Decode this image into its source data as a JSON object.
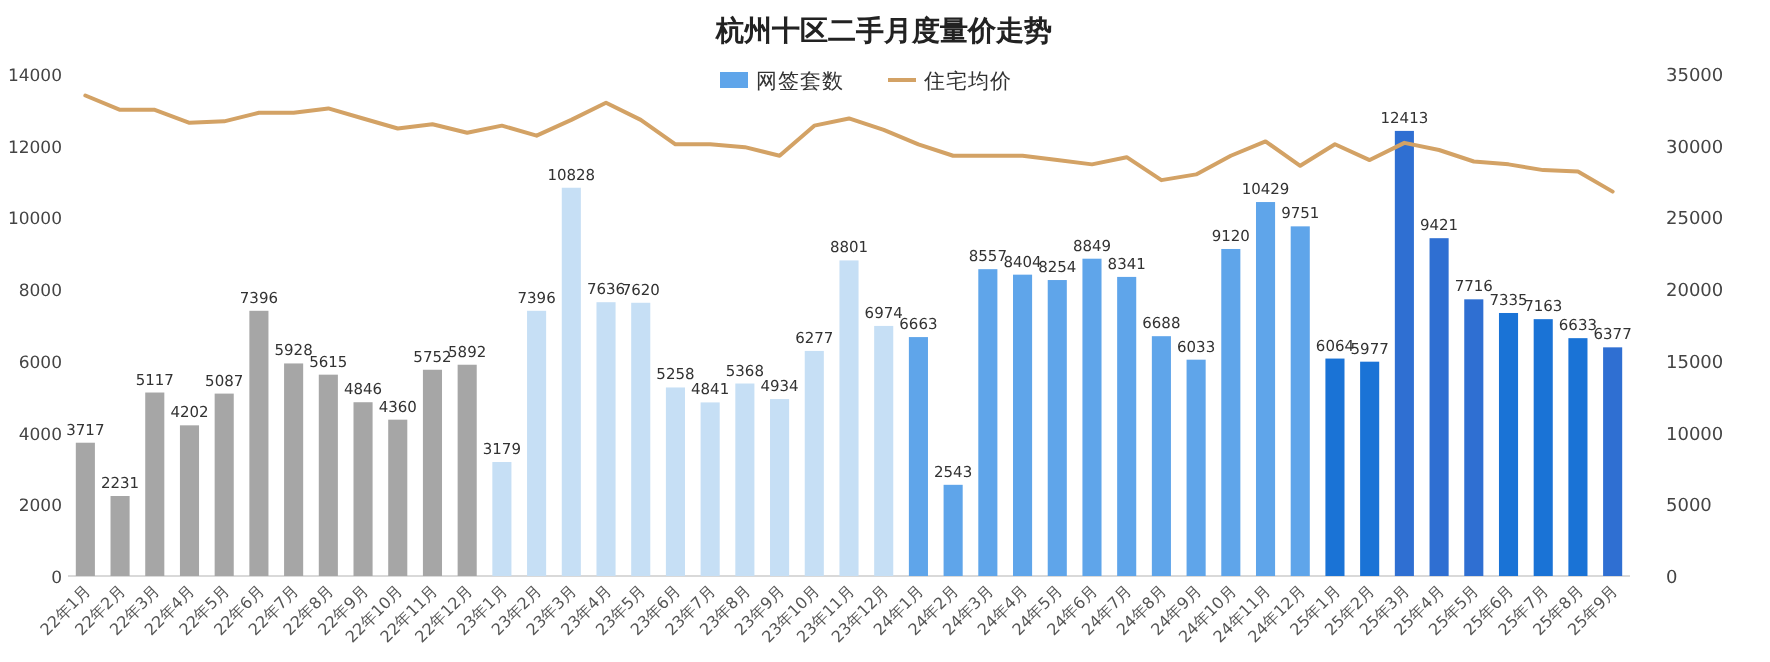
{
  "chart_data": {
    "type": "bar",
    "title": "杭州十区二手月度量价走势",
    "categories": [
      "22年1月",
      "22年2月",
      "22年3月",
      "22年4月",
      "22年5月",
      "22年6月",
      "22年7月",
      "22年8月",
      "22年9月",
      "22年10月",
      "22年11月",
      "22年12月",
      "23年1月",
      "23年2月",
      "23年3月",
      "23年4月",
      "23年5月",
      "23年6月",
      "23年7月",
      "23年8月",
      "23年9月",
      "23年10月",
      "23年11月",
      "23年12月",
      "24年1月",
      "24年2月",
      "24年3月",
      "24年4月",
      "24年5月",
      "24年6月",
      "24年7月",
      "24年8月",
      "24年9月",
      "24年10月",
      "24年11月",
      "24年12月",
      "25年1月",
      "25年2月",
      "25年3月",
      "25年4月",
      "25年5月",
      "25年6月",
      "25年7月",
      "25年8月",
      "25年9月"
    ],
    "series": [
      {
        "name": "网签套数",
        "color": "#5fa5ea",
        "colors": [
          "#a6a6a6",
          "#a6a6a6",
          "#a6a6a6",
          "#a6a6a6",
          "#a6a6a6",
          "#a6a6a6",
          "#a6a6a6",
          "#a6a6a6",
          "#a6a6a6",
          "#a6a6a6",
          "#a6a6a6",
          "#a6a6a6",
          "#c6dff5",
          "#c6dff5",
          "#c6dff5",
          "#c6dff5",
          "#c6dff5",
          "#c6dff5",
          "#c6dff5",
          "#c6dff5",
          "#c6dff5",
          "#c6dff5",
          "#c6dff5",
          "#c6dff5",
          "#5fa5ea",
          "#5fa5ea",
          "#5fa5ea",
          "#5fa5ea",
          "#5fa5ea",
          "#5fa5ea",
          "#5fa5ea",
          "#5fa5ea",
          "#5fa5ea",
          "#5fa5ea",
          "#5fa5ea",
          "#5fa5ea",
          "#1a73d6",
          "#1a73d6",
          "#2f6fd2",
          "#2f6fd2",
          "#2f6fd2",
          "#1a73d6",
          "#1a73d6",
          "#1a73d6",
          "#2f6fd2"
        ],
        "values": [
          3717,
          2231,
          5117,
          4202,
          5087,
          7396,
          5928,
          5615,
          4846,
          4360,
          5752,
          5892,
          3179,
          7396,
          10828,
          7636,
          7620,
          5258,
          4841,
          5368,
          4934,
          6277,
          8801,
          6974,
          6663,
          2543,
          8557,
          8404,
          8254,
          8849,
          8341,
          6688,
          6033,
          9120,
          10429,
          9751,
          6064,
          5977,
          12413,
          9421,
          7716,
          7335,
          7163,
          6633,
          6377
        ],
        "value_labels": [
          "3717",
          "2231",
          "5117",
          "4202",
          "5087",
          "7396",
          "5928",
          "5615",
          "4846",
          "4360",
          "5752",
          "5892",
          "3179",
          "7396",
          "10828",
          "7636",
          "7620",
          "5258",
          "4841",
          "5368",
          "4934",
          "6277",
          "8801",
          "6974",
          "6663",
          "2543",
          "8557",
          "8404",
          "8254",
          "8849",
          "8341",
          "6688",
          "6033",
          "9120",
          "10429",
          "9751",
          "6064",
          "5977",
          "12413",
          "9421",
          "7716",
          "7335",
          "7163",
          "6633",
          "6377"
        ]
      },
      {
        "name": "住宅均价",
        "type": "line",
        "axis": "y2",
        "color": "#d3a265",
        "values": [
          33500,
          32500,
          32500,
          31600,
          31700,
          32300,
          32300,
          32600,
          31900,
          31200,
          31500,
          30900,
          31400,
          30700,
          31800,
          33000,
          31800,
          30100,
          30100,
          29900,
          29300,
          31400,
          31900,
          31100,
          30100,
          29300,
          29300,
          29300,
          29000,
          28700,
          29200,
          27600,
          28000,
          29300,
          30300,
          28600,
          30100,
          29000,
          30200,
          29700,
          28900,
          28700,
          28300,
          28200,
          26800
        ]
      }
    ],
    "ylim": [
      0,
      14000
    ],
    "yticks": [
      0,
      2000,
      4000,
      6000,
      8000,
      10000,
      12000,
      14000
    ],
    "y2lim": [
      0,
      35000
    ],
    "y2ticks": [
      0,
      5000,
      10000,
      15000,
      20000,
      25000,
      30000,
      35000
    ],
    "legend": "top",
    "grid": false,
    "marker": "none",
    "line_style": "solid"
  }
}
